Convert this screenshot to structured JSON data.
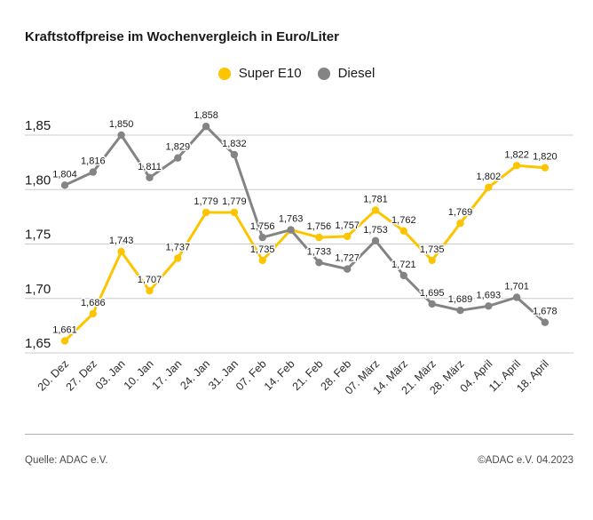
{
  "page": {
    "title": "Kraftstoffpreise im Wochenvergleich in Euro/Liter",
    "footer_source": "Quelle: ADAC e.V.",
    "footer_copyright": "©ADAC e.V. 04.2023"
  },
  "legend": {
    "items": [
      {
        "label": "Super E10",
        "color": "#fdc400"
      },
      {
        "label": "Diesel",
        "color": "#848484"
      }
    ]
  },
  "chart_data": {
    "type": "line",
    "title": "Kraftstoffpreise im Wochenvergleich in Euro/Liter",
    "unit": "Euro/Liter",
    "grid": true,
    "legend_position": "top",
    "ylim": [
      1.64,
      1.87
    ],
    "categories": [
      "20. Dez",
      "27. Dez",
      "03. Jan",
      "10. Jan",
      "17. Jan",
      "24. Jan",
      "31. Jan",
      "07. Feb",
      "14. Feb",
      "21. Feb",
      "28. Feb",
      "07. März",
      "14. März",
      "21. März",
      "28. März",
      "04. April",
      "11. April",
      "18. April"
    ],
    "yticks": [
      {
        "label": "1,85",
        "value": 1.85
      },
      {
        "label": "1,80",
        "value": 1.8
      },
      {
        "label": "1,75",
        "value": 1.75
      },
      {
        "label": "1,70",
        "value": 1.7
      },
      {
        "label": "1,65",
        "value": 1.65
      }
    ],
    "series": [
      {
        "name": "Super E10",
        "color": "#fdc400",
        "values": [
          1.661,
          1.686,
          1.743,
          1.707,
          1.737,
          1.779,
          1.779,
          1.735,
          1.763,
          1.756,
          1.757,
          1.781,
          1.762,
          1.735,
          1.769,
          1.802,
          1.822,
          1.82
        ],
        "labels": [
          "1,661",
          "1,686",
          "1,743",
          "1,707",
          "1,737",
          "1,779",
          "1,779",
          "1,735",
          "",
          "1,756",
          "1,757",
          "1,781",
          "1,762",
          "1,735",
          "1,769",
          "1,802",
          "1,822",
          "1,820"
        ]
      },
      {
        "name": "Diesel",
        "color": "#848484",
        "values": [
          1.804,
          1.816,
          1.85,
          1.811,
          1.829,
          1.858,
          1.832,
          1.756,
          1.763,
          1.733,
          1.727,
          1.753,
          1.721,
          1.695,
          1.689,
          1.693,
          1.701,
          1.678
        ],
        "labels": [
          "1,804",
          "1,816",
          "1,850",
          "1,811",
          "1,829",
          "1,858",
          "1,832",
          "1,756",
          "1,763",
          "1,733",
          "1,727",
          "1,753",
          "1,721",
          "1,695",
          "1,689",
          "1,693",
          "1,701",
          "1,678"
        ]
      }
    ]
  }
}
